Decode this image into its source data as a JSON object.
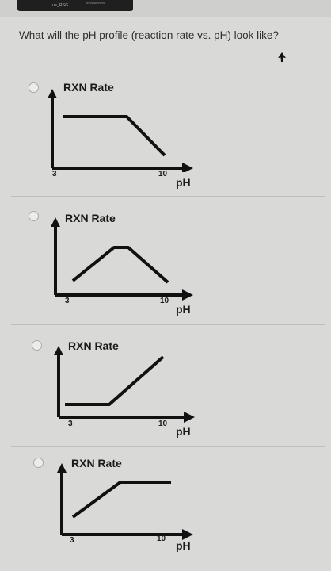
{
  "question": {
    "text": "What will the pH profile (reaction rate vs. pH) look like?"
  },
  "top_bar": {
    "small_text": "ue_RSG",
    "tiny_text": "previous/next"
  },
  "options": [
    {
      "ylabel": "RXN Rate",
      "xlabel": "pH",
      "x_tick_low": "3",
      "x_tick_high": "10",
      "shape": "high-then-decreasing",
      "chart_data": {
        "type": "line",
        "title": "",
        "xlabel": "pH",
        "ylabel": "RXN Rate",
        "x": [
          3,
          7,
          10
        ],
        "y": [
          "high",
          "high",
          "low"
        ]
      }
    },
    {
      "ylabel": "RXN Rate",
      "xlabel": "pH",
      "x_tick_low": "3",
      "x_tick_high": "10",
      "shape": "rise-plateau-fall",
      "chart_data": {
        "type": "line",
        "title": "",
        "xlabel": "pH",
        "ylabel": "RXN Rate",
        "x": [
          3,
          6,
          7,
          10
        ],
        "y": [
          "low",
          "high",
          "high",
          "low"
        ]
      }
    },
    {
      "ylabel": "RXN Rate",
      "xlabel": "pH",
      "x_tick_low": "3",
      "x_tick_high": "10",
      "shape": "low-then-increasing",
      "chart_data": {
        "type": "line",
        "title": "",
        "xlabel": "pH",
        "ylabel": "RXN Rate",
        "x": [
          3,
          6,
          10
        ],
        "y": [
          "low",
          "low",
          "high"
        ]
      }
    },
    {
      "ylabel": "RXN Rate",
      "xlabel": "pH",
      "x_tick_low": "3",
      "x_tick_high": "10",
      "shape": "increasing-then-high",
      "chart_data": {
        "type": "line",
        "title": "",
        "xlabel": "pH",
        "ylabel": "RXN Rate",
        "x": [
          3,
          7,
          10
        ],
        "y": [
          "low",
          "high",
          "high"
        ]
      }
    }
  ]
}
